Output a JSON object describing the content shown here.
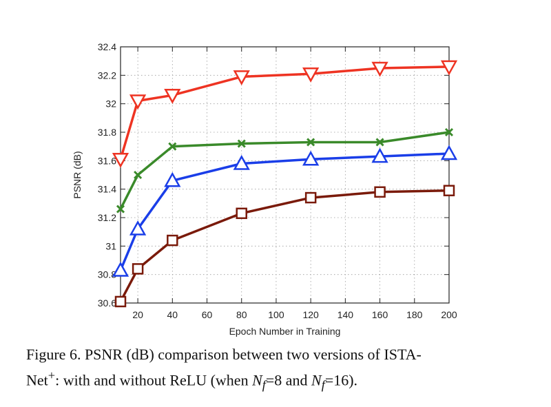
{
  "chart_data": {
    "type": "line",
    "xlabel": "Epoch Number in Training",
    "ylabel": "PSNR (dB)",
    "xlim": [
      10,
      200
    ],
    "ylim": [
      30.6,
      32.4
    ],
    "xticks": [
      20,
      40,
      60,
      80,
      100,
      120,
      140,
      160,
      180,
      200
    ],
    "yticks": [
      30.6,
      30.8,
      31,
      31.2,
      31.4,
      31.6,
      31.8,
      32,
      32.2,
      32.4
    ],
    "ytick_labels": [
      "30.6",
      "30.8",
      "31",
      "31.2",
      "31.4",
      "31.6",
      "31.8",
      "32",
      "32.2",
      "32.4"
    ],
    "grid": true,
    "x": [
      10,
      20,
      40,
      80,
      120,
      160,
      200
    ],
    "series": [
      {
        "name": "red-triangle-down",
        "color": "#ee3322",
        "marker": "triangle-down",
        "values": [
          31.61,
          32.02,
          32.06,
          32.19,
          32.21,
          32.25,
          32.26
        ]
      },
      {
        "name": "green-x",
        "color": "#3a8a2a",
        "marker": "x",
        "values": [
          31.26,
          31.5,
          31.7,
          31.72,
          31.73,
          31.73,
          31.8
        ]
      },
      {
        "name": "blue-triangle-up",
        "color": "#1a3ee8",
        "marker": "triangle-up",
        "values": [
          30.83,
          31.12,
          31.46,
          31.58,
          31.61,
          31.63,
          31.65
        ]
      },
      {
        "name": "darkred-square",
        "color": "#7a1a0a",
        "marker": "square",
        "values": [
          30.61,
          30.84,
          31.04,
          31.23,
          31.34,
          31.38,
          31.39
        ]
      }
    ]
  },
  "caption": {
    "lead": "Figure 6. PSNR (dB) comparison between two versions of ISTA-",
    "net": "Net",
    "sup": "+",
    "mid": ": with and without ReLU (when ",
    "nf_a": "N",
    "nf_a_sub": "f",
    "val_a": "=8 and ",
    "nf_b": "N",
    "nf_b_sub": "f",
    "val_b": "=16)."
  }
}
